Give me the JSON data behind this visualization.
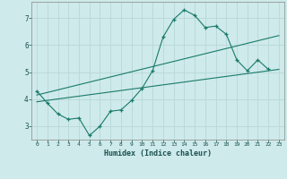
{
  "title": "",
  "xlabel": "Humidex (Indice chaleur)",
  "ylabel": "",
  "bg_color": "#ceeaea",
  "grid_color": "#b8d8d8",
  "line_color": "#1a7a6a",
  "xlim": [
    -0.5,
    23.5
  ],
  "ylim": [
    2.5,
    7.6
  ],
  "yticks": [
    3,
    4,
    5,
    6,
    7
  ],
  "xticks": [
    0,
    1,
    2,
    3,
    4,
    5,
    6,
    7,
    8,
    9,
    10,
    11,
    12,
    13,
    14,
    15,
    16,
    17,
    18,
    19,
    20,
    21,
    22,
    23
  ],
  "line1_y": [
    4.3,
    3.85,
    3.45,
    3.25,
    3.3,
    2.65,
    3.0,
    3.55,
    3.6,
    3.95,
    4.4,
    5.05,
    6.3,
    6.95,
    7.3,
    7.1,
    6.65,
    6.7,
    6.4,
    5.45,
    5.05,
    5.45,
    5.1,
    null
  ],
  "line2": [
    [
      0,
      4.15
    ],
    [
      23,
      6.35
    ]
  ],
  "line3": [
    [
      0,
      3.9
    ],
    [
      23,
      5.1
    ]
  ]
}
